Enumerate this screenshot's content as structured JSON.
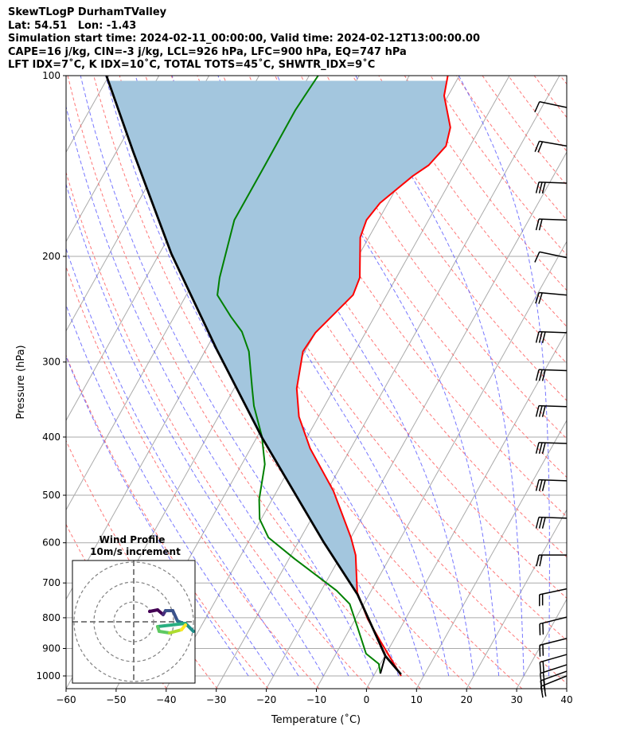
{
  "header": {
    "title": "SkewTLogP DurhamTValley",
    "location": "Lat: 54.51   Lon: -1.43",
    "times": "Simulation start time: 2024-02-11_00:00:00, Valid time: 2024-02-12T13:00:00.00",
    "indices1": "CAPE=16 j/kg, CIN=-3 j/kg, LCL=926 hPa, LFC=900 hPa, EQ=747 hPa",
    "indices2": "LFT IDX=7˚C, K IDX=10˚C, TOTAL TOTS=45˚C, SHWTR_IDX=9˚C"
  },
  "chart_data": {
    "type": "line",
    "subtype": "skew-t log-p",
    "xlabel": "Temperature (˚C)",
    "ylabel": "Pressure (hPa)",
    "xlim": [
      -60,
      40
    ],
    "ylim": [
      1050,
      100
    ],
    "xticks": [
      "−60",
      "−50",
      "−40",
      "−30",
      "−20",
      "−10",
      "0",
      "10",
      "20",
      "30",
      "40"
    ],
    "xtick_values": [
      -60,
      -50,
      -40,
      -30,
      -20,
      -10,
      0,
      10,
      20,
      30,
      40
    ],
    "yticks": [
      "100",
      "200",
      "300",
      "400",
      "500",
      "600",
      "700",
      "800",
      "900",
      "1000"
    ],
    "ytick_values": [
      100,
      200,
      300,
      400,
      500,
      600,
      700,
      800,
      900,
      1000
    ],
    "grid": true,
    "colors": {
      "temperature": "#ff0000",
      "dewpoint": "#008000",
      "parcel": "#000000",
      "cin_fill": "#a3c6de",
      "dry_adiabat": "#ff5555",
      "moist_adiabat": "#5555ff",
      "isotherm": "#aaaaaa"
    },
    "series": [
      {
        "name": "Temperature",
        "p": [
          100,
          108,
          122,
          131,
          141,
          147,
          163,
          174,
          186,
          217,
          232,
          268,
          288,
          332,
          370,
          418,
          492,
          588,
          629,
          726,
          803,
          877,
          1000
        ],
        "T": [
          -52.3,
          -50.8,
          -46.0,
          -44.8,
          -46.1,
          -48.1,
          -51.6,
          -52.4,
          -51.7,
          -47.3,
          -46.7,
          -50.0,
          -50.4,
          -47.5,
          -43.9,
          -38.1,
          -28.7,
          -20.0,
          -17.1,
          -12.6,
          -7.6,
          -2.4,
          5.5
        ]
      },
      {
        "name": "Dewpoint",
        "p": [
          100,
          114,
          141,
          174,
          217,
          232,
          252,
          267,
          288,
          332,
          355,
          399,
          444,
          508,
          548,
          588,
          638,
          721,
          759,
          827,
          918,
          955,
          991
        ],
        "T": [
          -78.2,
          -78.9,
          -78.8,
          -78.8,
          -75.3,
          -73.8,
          -68.7,
          -64.8,
          -61.2,
          -56.4,
          -54.1,
          -49.1,
          -45.4,
          -42.6,
          -40.3,
          -36.5,
          -28.9,
          -16.9,
          -12.8,
          -8.8,
          -4.0,
          -0.3,
          1.1
        ]
      },
      {
        "name": "Parcel",
        "p": [
          994,
          926,
          732,
          597,
          401,
          285,
          198,
          134,
          100
        ],
        "T": [
          5.3,
          0.1,
          -12.3,
          -25.1,
          -48.9,
          -68.0,
          -87.6,
          -106.6,
          -120.5
        ]
      },
      {
        "name": "LCL connector",
        "p": [
          926,
          991
        ],
        "T": [
          0.1,
          1.1
        ]
      }
    ],
    "shading": {
      "between": [
        "Parcel",
        "Temperature"
      ],
      "p_top": 100,
      "p_bottom": 747
    },
    "wind_barbs": {
      "units": "kt",
      "p": [
        113,
        131,
        151,
        174,
        201,
        232,
        268,
        310,
        356,
        410,
        473,
        546,
        629,
        716,
        798,
        866,
        921,
        958,
        982,
        1000
      ],
      "dir": [
        282,
        280,
        272,
        272,
        282,
        275,
        272,
        272,
        272,
        272,
        272,
        272,
        270,
        258,
        256,
        256,
        254,
        252,
        250,
        248
      ],
      "speed": [
        10,
        20,
        30,
        20,
        10,
        20,
        30,
        30,
        30,
        30,
        30,
        30,
        20,
        20,
        20,
        20,
        20,
        20,
        20,
        20
      ]
    },
    "hodograph": {
      "title": "Wind Profile",
      "subtitle": "10m/s increment",
      "ring_step_ms": 10,
      "rings": 3,
      "u": [
        8,
        12,
        14.8,
        16,
        19.6,
        22,
        26.8,
        30,
        26,
        12,
        12.8,
        18,
        24,
        26
      ],
      "v": [
        5.2,
        6,
        3.6,
        5.6,
        5.6,
        0.4,
        -1.6,
        -4.8,
        -0.8,
        -2.4,
        -4.8,
        -5.6,
        -4,
        -1.6
      ]
    }
  }
}
